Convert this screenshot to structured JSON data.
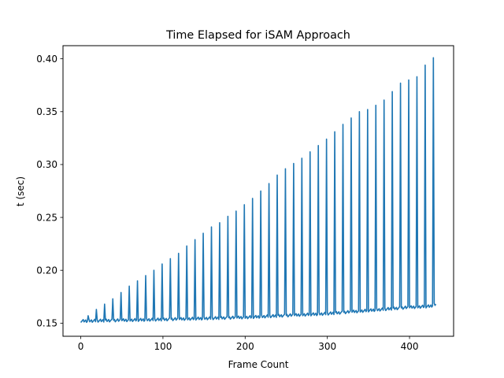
{
  "chart_data": {
    "type": "line",
    "title": "Time Elapsed for iSAM Approach",
    "xlabel": "Frame Count",
    "ylabel": "t (sec)",
    "xlim": [
      -21.6,
      453.6
    ],
    "ylim": [
      0.1376,
      0.4124
    ],
    "xticks": [
      0,
      100,
      200,
      300,
      400
    ],
    "xtick_labels": [
      "0",
      "100",
      "200",
      "300",
      "400"
    ],
    "yticks": [
      0.15,
      0.2,
      0.25,
      0.3,
      0.35,
      0.4
    ],
    "ytick_labels": [
      "0.15",
      "0.20",
      "0.25",
      "0.30",
      "0.35",
      "0.40"
    ],
    "grid": false,
    "legend": "none",
    "series": [
      {
        "color": "#1f77b4",
        "baseline": {
          "x": [
            0,
            100,
            200,
            300,
            400,
            425,
            432
          ],
          "y": [
            0.152,
            0.1535,
            0.1555,
            0.159,
            0.165,
            0.166,
            0.168
          ]
        },
        "spikes": {
          "x": [
            9,
            19,
            29,
            39,
            49,
            59,
            69,
            79,
            89,
            99,
            109,
            119,
            129,
            139,
            149,
            159,
            169,
            179,
            189,
            199,
            209,
            219,
            229,
            239,
            249,
            259,
            269,
            279,
            289,
            299,
            309,
            319,
            329,
            339,
            349,
            359,
            369,
            379,
            389,
            399,
            409,
            419,
            429
          ],
          "y": [
            0.157,
            0.163,
            0.168,
            0.173,
            0.179,
            0.185,
            0.19,
            0.195,
            0.2,
            0.206,
            0.211,
            0.216,
            0.223,
            0.229,
            0.235,
            0.241,
            0.245,
            0.251,
            0.256,
            0.262,
            0.268,
            0.275,
            0.282,
            0.29,
            0.296,
            0.301,
            0.306,
            0.312,
            0.318,
            0.324,
            0.331,
            0.338,
            0.344,
            0.35,
            0.352,
            0.356,
            0.361,
            0.369,
            0.377,
            0.38,
            0.383,
            0.394,
            0.401
          ]
        }
      }
    ]
  }
}
